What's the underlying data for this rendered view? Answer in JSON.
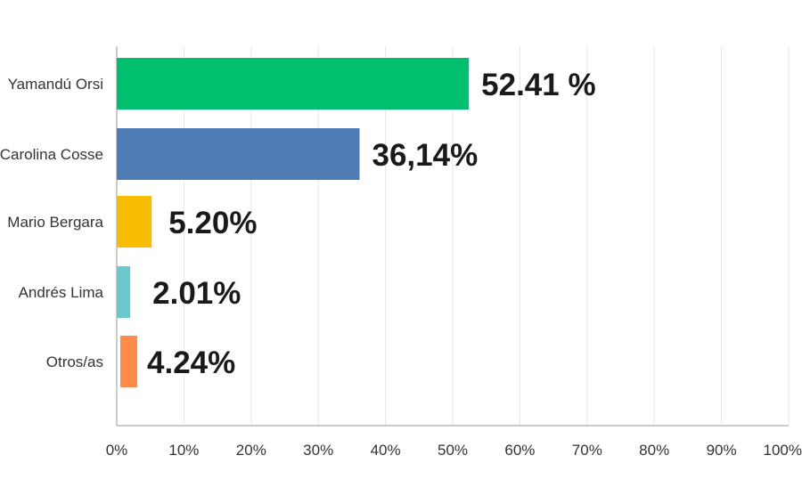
{
  "chart_data": {
    "type": "bar",
    "orientation": "horizontal",
    "categories": [
      "Yamandú Orsi",
      "Carolina Cosse",
      "Mario Bergara",
      "Andrés Lima",
      "Otros/as"
    ],
    "values": [
      52.41,
      36.14,
      5.2,
      2.01,
      4.24
    ],
    "data_labels": [
      "52.41 %",
      "36,14%",
      "5.20%",
      "2.01%",
      "4.24%"
    ],
    "colors": [
      "#00bf6f",
      "#507cb6",
      "#f8bc00",
      "#6bc8cd",
      "#ff8c4b"
    ],
    "xlim": [
      0,
      100
    ],
    "x_ticks": [
      "0%",
      "10%",
      "20%",
      "30%",
      "40%",
      "50%",
      "60%",
      "70%",
      "80%",
      "90%",
      "100%"
    ],
    "grid": true,
    "legend": false,
    "title": "",
    "xlabel": "",
    "ylabel": ""
  }
}
